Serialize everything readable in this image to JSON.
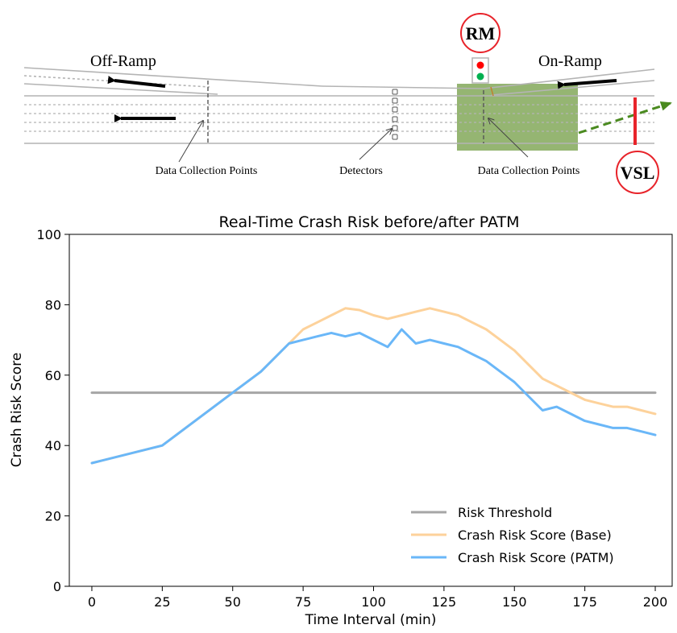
{
  "diagram": {
    "off_ramp_label": "Off-Ramp",
    "on_ramp_label": "On-Ramp",
    "rm_label": "RM",
    "vsl_label": "VSL",
    "collection_points_left": "Data Collection Points",
    "detectors_label": "Detectors",
    "collection_points_right": "Data Collection Points",
    "colors": {
      "road": "#b4b4b4",
      "zone": "#7aa34f",
      "arrow_green": "#4a8a1f",
      "vsl_red": "#e8232a",
      "signal_red": "#ff0000",
      "signal_green": "#00b050"
    }
  },
  "chart_data": {
    "type": "line",
    "title": "Real-Time Crash Risk before/after PATM",
    "xlabel": "Time Interval (min)",
    "ylabel": "Crash Risk Score",
    "xlim": [
      -8,
      206
    ],
    "ylim": [
      0,
      100
    ],
    "xticks": [
      0,
      25,
      50,
      75,
      100,
      125,
      150,
      175,
      200
    ],
    "yticks": [
      0,
      20,
      40,
      60,
      80,
      100
    ],
    "grid": false,
    "legend": "lower-right",
    "series": [
      {
        "name": "Risk Threshold",
        "color": "#a6a6a6",
        "x": [
          0,
          200
        ],
        "y": [
          55,
          55
        ]
      },
      {
        "name": "Crash Risk Score (Base)",
        "color": "#fdd29b",
        "x": [
          0,
          25,
          50,
          60,
          70,
          75,
          80,
          85,
          90,
          95,
          100,
          105,
          110,
          115,
          120,
          125,
          130,
          135,
          140,
          145,
          150,
          155,
          160,
          165,
          170,
          175,
          180,
          185,
          190,
          195,
          200
        ],
        "y": [
          35,
          40,
          55,
          61,
          69,
          73,
          75,
          77,
          79,
          78.5,
          77,
          76,
          77,
          78,
          79,
          78,
          77,
          75,
          73,
          70,
          67,
          63,
          59,
          57,
          55,
          53,
          52,
          51,
          51,
          50,
          49
        ]
      },
      {
        "name": "Crash Risk Score (PATM)",
        "color": "#6ab7f8",
        "x": [
          0,
          25,
          50,
          60,
          70,
          75,
          80,
          85,
          90,
          95,
          100,
          105,
          110,
          115,
          120,
          125,
          130,
          135,
          140,
          145,
          150,
          155,
          160,
          165,
          170,
          175,
          180,
          185,
          190,
          195,
          200
        ],
        "y": [
          35,
          40,
          55,
          61,
          69,
          70,
          71,
          72,
          71,
          72,
          70,
          68,
          73,
          69,
          70,
          69,
          68,
          66,
          64,
          61,
          58,
          54,
          50,
          51,
          49,
          47,
          46,
          45,
          45,
          44,
          43
        ]
      }
    ]
  }
}
